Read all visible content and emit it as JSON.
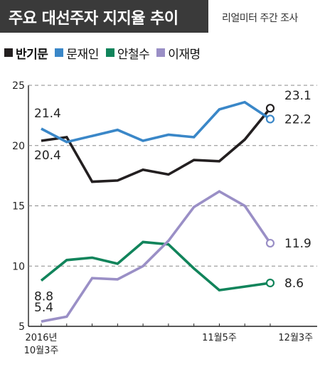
{
  "header": {
    "title": "주요 대선주자 지지율 추이",
    "subtitle": "리얼미터 주간 조사"
  },
  "chart_data": {
    "type": "line",
    "title": "주요 대선주자 지지율 추이",
    "subtitle": "리얼미터 주간 조사",
    "xlabel": "",
    "ylabel": "",
    "ylim": [
      5,
      25
    ],
    "y_ticks": [
      "5",
      "10",
      "15",
      "20",
      "25"
    ],
    "grid": true,
    "legend_position": "top-left",
    "x_tick_labels": [
      {
        "index": 0,
        "line1": "2016년",
        "line2": "10월3주"
      },
      {
        "index": 7,
        "line1": "11월5주",
        "line2": ""
      },
      {
        "index": 10,
        "line1": "12월3주",
        "line2": ""
      }
    ],
    "series": [
      {
        "name": "반기문",
        "color": "#231f20",
        "bold": true,
        "values": [
          20.4,
          20.7,
          17.0,
          17.1,
          18.0,
          17.6,
          18.8,
          18.7,
          20.5,
          23.1
        ],
        "start_label": "20.4",
        "end_label": "23.1"
      },
      {
        "name": "문재인",
        "color": "#3a87c8",
        "bold": false,
        "values": [
          21.4,
          20.3,
          20.8,
          21.3,
          20.4,
          20.9,
          20.7,
          23.0,
          23.6,
          22.2
        ],
        "start_label": "21.4",
        "end_label": "22.2"
      },
      {
        "name": "안철수",
        "color": "#11845b",
        "bold": false,
        "values": [
          8.8,
          10.5,
          10.7,
          10.2,
          12.0,
          11.8,
          9.8,
          8.0,
          8.3,
          8.6
        ],
        "start_label": "8.8",
        "end_label": "8.6"
      },
      {
        "name": "이재명",
        "color": "#9a8fc6",
        "bold": false,
        "values": [
          5.4,
          5.8,
          9.0,
          8.9,
          10.0,
          12.1,
          14.9,
          16.2,
          15.0,
          11.9
        ],
        "start_label": "5.4",
        "end_label": "11.9"
      }
    ]
  }
}
